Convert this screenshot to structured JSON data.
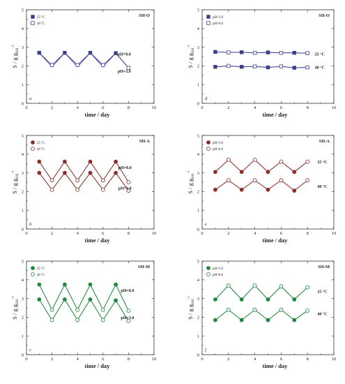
{
  "figure": {
    "xlabel": "time / day",
    "ylabel": "S / g g",
    "ylabel_sub": "SH",
    "ylabel_sup": "-1",
    "xticks": [
      "0",
      "2",
      "4",
      "6",
      "8",
      "10"
    ],
    "yticks": [
      "0",
      "1",
      "2",
      "3",
      "4",
      "5"
    ],
    "series_unit_note": "°C"
  },
  "chart_data": [
    {
      "type": "line",
      "title": "SH-O",
      "corner_label": "a",
      "color": "#3b3f8f",
      "xlim": [
        0,
        10
      ],
      "ylim": [
        0,
        5
      ],
      "grid": false,
      "legend_placement": "top-left",
      "legend": [
        "25 °C",
        "40 °C"
      ],
      "series": [
        {
          "name": "25 °C",
          "marker": "filled-square",
          "x": [
            1,
            2,
            3,
            4,
            5,
            6,
            7,
            8
          ],
          "y": [
            2.7,
            1.95,
            2.7,
            1.95,
            2.7,
            1.95,
            2.68,
            1.9
          ]
        },
        {
          "name": "40 °C",
          "marker": "open-square",
          "x": [
            1,
            2,
            3,
            4,
            5,
            6,
            7,
            8
          ],
          "y": [
            2.7,
            2.05,
            2.7,
            2.05,
            2.7,
            2.05,
            2.68,
            1.9
          ]
        }
      ],
      "annotations": [
        {
          "text": "pH=8.0",
          "x": 7.15,
          "y": 2.55
        },
        {
          "text": "pH=3.0",
          "x": 7.15,
          "y": 1.65
        }
      ]
    },
    {
      "type": "line",
      "title": "SH-O",
      "corner_label": "d",
      "color": "#3b3f8f",
      "xlim": [
        0,
        10
      ],
      "ylim": [
        0,
        5
      ],
      "grid": false,
      "legend_placement": "top-left",
      "legend": [
        "pH=3.0",
        "pH=8.0"
      ],
      "series": [
        {
          "name": "pH=3.0",
          "marker": "filled-square",
          "x": [
            1,
            2,
            3,
            4,
            5,
            6,
            7,
            8
          ],
          "y": [
            2.75,
            2.72,
            2.73,
            2.7,
            2.72,
            2.7,
            2.7,
            2.68
          ]
        },
        {
          "name": "pH=8.0",
          "marker": "open-square",
          "x": [
            1,
            2,
            3,
            4,
            5,
            6,
            7,
            8
          ],
          "y": [
            2.75,
            2.72,
            2.73,
            2.7,
            2.72,
            2.7,
            2.7,
            2.68
          ]
        },
        {
          "name": "pH=3.0",
          "marker": "filled-square",
          "x": [
            1,
            2,
            3,
            4,
            5,
            6,
            7,
            8
          ],
          "y": [
            1.95,
            2.0,
            1.95,
            1.97,
            1.92,
            1.97,
            1.9,
            1.92
          ]
        },
        {
          "name": "pH=8.0",
          "marker": "open-square",
          "x": [
            1,
            2,
            3,
            4,
            5,
            6,
            7,
            8
          ],
          "y": [
            1.95,
            2.0,
            1.95,
            1.97,
            1.92,
            1.97,
            1.9,
            1.92
          ]
        }
      ],
      "annotations": [
        {
          "text": "25 °C",
          "x": 8.55,
          "y": 2.55
        },
        {
          "text": "40 °C",
          "x": 8.55,
          "y": 1.85
        }
      ]
    },
    {
      "type": "line",
      "title": "SH-A",
      "corner_label": "b",
      "color": "#8b2e2a",
      "xlim": [
        0,
        10
      ],
      "ylim": [
        0,
        5
      ],
      "grid": false,
      "legend_placement": "top-left",
      "legend": [
        "25 °C",
        "40 °C"
      ],
      "series": [
        {
          "name": "25 °C",
          "marker": "filled-circle",
          "x": [
            1,
            2,
            3,
            4,
            5,
            6,
            7,
            8
          ],
          "y": [
            3.6,
            2.6,
            3.6,
            2.6,
            3.6,
            2.6,
            3.6,
            2.5
          ]
        },
        {
          "name": "40 °C",
          "marker": "open-circle",
          "x": [
            1,
            2,
            3,
            4,
            5,
            6,
            7,
            8
          ],
          "y": [
            3.6,
            2.6,
            3.6,
            2.6,
            3.6,
            2.6,
            3.6,
            2.5
          ]
        },
        {
          "name": "25 °C",
          "marker": "filled-circle",
          "x": [
            1,
            2,
            3,
            4,
            5,
            6,
            7,
            8
          ],
          "y": [
            3.0,
            2.1,
            3.0,
            2.1,
            3.0,
            2.1,
            3.0,
            2.05
          ]
        },
        {
          "name": "40 °C",
          "marker": "open-circle",
          "x": [
            1,
            2,
            3,
            4,
            5,
            6,
            7,
            8
          ],
          "y": [
            3.0,
            2.1,
            3.0,
            2.1,
            3.0,
            2.1,
            3.0,
            2.05
          ]
        }
      ],
      "annotations": [
        {
          "text": "pH=8.0",
          "x": 7.2,
          "y": 3.2
        },
        {
          "text": "pH=3.0",
          "x": 7.2,
          "y": 2.1
        }
      ]
    },
    {
      "type": "line",
      "title": "SH-A",
      "corner_label": "e",
      "color": "#8b2e2a",
      "xlim": [
        0,
        10
      ],
      "ylim": [
        0,
        5
      ],
      "grid": false,
      "legend_placement": "top-left",
      "legend": [
        "pH=3.0",
        "pH=8.0"
      ],
      "series": [
        {
          "name": "pH=3.0",
          "marker": "filled-circle",
          "x": [
            1,
            2,
            3,
            4,
            5,
            6,
            7,
            8
          ],
          "y": [
            3.05,
            3.7,
            3.05,
            3.7,
            3.05,
            3.6,
            3.05,
            3.6
          ]
        },
        {
          "name": "pH=8.0",
          "marker": "open-circle",
          "x": [
            1,
            2,
            3,
            4,
            5,
            6,
            7,
            8
          ],
          "y": [
            3.05,
            3.7,
            3.05,
            3.7,
            3.05,
            3.6,
            3.05,
            3.6
          ]
        },
        {
          "name": "pH=3.0",
          "marker": "filled-circle",
          "x": [
            1,
            2,
            3,
            4,
            5,
            6,
            7,
            8
          ],
          "y": [
            2.1,
            2.6,
            2.1,
            2.6,
            2.1,
            2.6,
            2.05,
            2.6
          ]
        },
        {
          "name": "pH=8.0",
          "marker": "open-circle",
          "x": [
            1,
            2,
            3,
            4,
            5,
            6,
            7,
            8
          ],
          "y": [
            2.1,
            2.6,
            2.1,
            2.6,
            2.1,
            2.6,
            2.05,
            2.6
          ]
        }
      ],
      "annotations": [
        {
          "text": "25 °C",
          "x": 8.75,
          "y": 3.5
        },
        {
          "text": "40 °C",
          "x": 8.75,
          "y": 2.2
        }
      ]
    },
    {
      "type": "line",
      "title": "SH-M",
      "corner_label": "c",
      "color": "#1f8a3c",
      "xlim": [
        0,
        10
      ],
      "ylim": [
        0,
        5
      ],
      "grid": false,
      "legend_placement": "top-left",
      "legend": [
        "25 °C",
        "40 °C"
      ],
      "series": [
        {
          "name": "25 °C",
          "marker": "filled-circle",
          "x": [
            1,
            2,
            3,
            4,
            5,
            6,
            7,
            8
          ],
          "y": [
            3.75,
            2.4,
            3.75,
            2.4,
            3.75,
            2.4,
            3.75,
            2.35
          ]
        },
        {
          "name": "40 °C",
          "marker": "open-circle",
          "x": [
            1,
            2,
            3,
            4,
            5,
            6,
            7,
            8
          ],
          "y": [
            3.75,
            2.4,
            3.75,
            2.4,
            3.75,
            2.4,
            3.75,
            2.35
          ]
        },
        {
          "name": "25 °C",
          "marker": "filled-circle",
          "x": [
            1,
            2,
            3,
            4,
            5,
            6,
            7,
            8
          ],
          "y": [
            2.95,
            1.85,
            2.95,
            1.85,
            2.95,
            1.85,
            2.9,
            1.8
          ]
        },
        {
          "name": "40 °C",
          "marker": "open-circle",
          "x": [
            1,
            2,
            3,
            4,
            5,
            6,
            7,
            8
          ],
          "y": [
            2.95,
            1.85,
            2.95,
            1.85,
            2.95,
            1.85,
            2.9,
            1.8
          ]
        }
      ],
      "annotations": [
        {
          "text": "pH=8.0",
          "x": 7.4,
          "y": 3.35
        },
        {
          "text": "pH=3.0",
          "x": 7.4,
          "y": 1.9
        }
      ]
    },
    {
      "type": "line",
      "title": "SH-M",
      "corner_label": "f",
      "color": "#1f8a3c",
      "xlim": [
        0,
        10
      ],
      "ylim": [
        0,
        5
      ],
      "grid": false,
      "legend_placement": "top-left",
      "legend": [
        "pH=3.0",
        "pH=8.0"
      ],
      "series": [
        {
          "name": "pH=3.0",
          "marker": "filled-circle",
          "x": [
            1,
            2,
            3,
            4,
            5,
            6,
            7,
            8
          ],
          "y": [
            2.95,
            3.7,
            2.95,
            3.7,
            2.95,
            3.65,
            2.95,
            3.6
          ]
        },
        {
          "name": "pH=8.0",
          "marker": "open-circle",
          "x": [
            1,
            2,
            3,
            4,
            5,
            6,
            7,
            8
          ],
          "y": [
            2.95,
            3.7,
            2.95,
            3.7,
            2.95,
            3.65,
            2.95,
            3.6
          ]
        },
        {
          "name": "pH=3.0",
          "marker": "filled-circle",
          "x": [
            1,
            2,
            3,
            4,
            5,
            6,
            7,
            8
          ],
          "y": [
            1.85,
            2.4,
            1.85,
            2.4,
            1.85,
            2.4,
            1.85,
            2.35
          ]
        },
        {
          "name": "pH=8.0",
          "marker": "open-circle",
          "x": [
            1,
            2,
            3,
            4,
            5,
            6,
            7,
            8
          ],
          "y": [
            1.85,
            2.4,
            1.85,
            2.4,
            1.85,
            2.4,
            1.85,
            2.35
          ]
        }
      ],
      "annotations": [
        {
          "text": "25 °C",
          "x": 8.75,
          "y": 3.3
        },
        {
          "text": "40 °C",
          "x": 8.75,
          "y": 2.1
        }
      ]
    }
  ]
}
